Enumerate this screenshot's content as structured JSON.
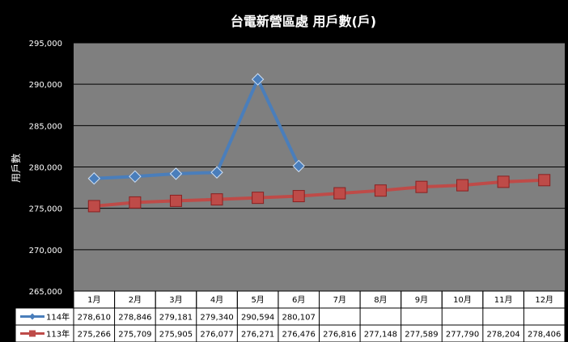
{
  "chart_data": {
    "type": "line",
    "title": "台電新營區處 用戶數(戶)",
    "ylabel": "用戶數",
    "ylim": [
      265000,
      295000
    ],
    "yticks": [
      "265,000",
      "270,000",
      "275,000",
      "280,000",
      "285,000",
      "290,000",
      "295,000"
    ],
    "ytick_values": [
      265000,
      270000,
      275000,
      280000,
      285000,
      290000,
      295000
    ],
    "categories": [
      "1月",
      "2月",
      "3月",
      "4月",
      "5月",
      "6月",
      "7月",
      "8月",
      "9月",
      "10月",
      "11月",
      "12月"
    ],
    "grid": true,
    "legend": "data-table",
    "series": [
      {
        "name": "114年",
        "color": "#4a7ebb",
        "marker": "diamond",
        "values": [
          278610,
          278846,
          279181,
          279340,
          290594,
          280107,
          null,
          null,
          null,
          null,
          null,
          null
        ],
        "labels": [
          "278,610",
          "278,846",
          "279,181",
          "279,340",
          "290,594",
          "280,107",
          "",
          "",
          "",
          "",
          "",
          ""
        ]
      },
      {
        "name": "113年",
        "color": "#be4b48",
        "marker": "square",
        "values": [
          275266,
          275709,
          275905,
          276077,
          276271,
          276476,
          276816,
          277148,
          277589,
          277790,
          278204,
          278406
        ],
        "labels": [
          "275,266",
          "275,709",
          "275,905",
          "276,077",
          "276,271",
          "276,476",
          "276,816",
          "277,148",
          "277,589",
          "277,790",
          "278,204",
          "278,406"
        ]
      }
    ]
  }
}
